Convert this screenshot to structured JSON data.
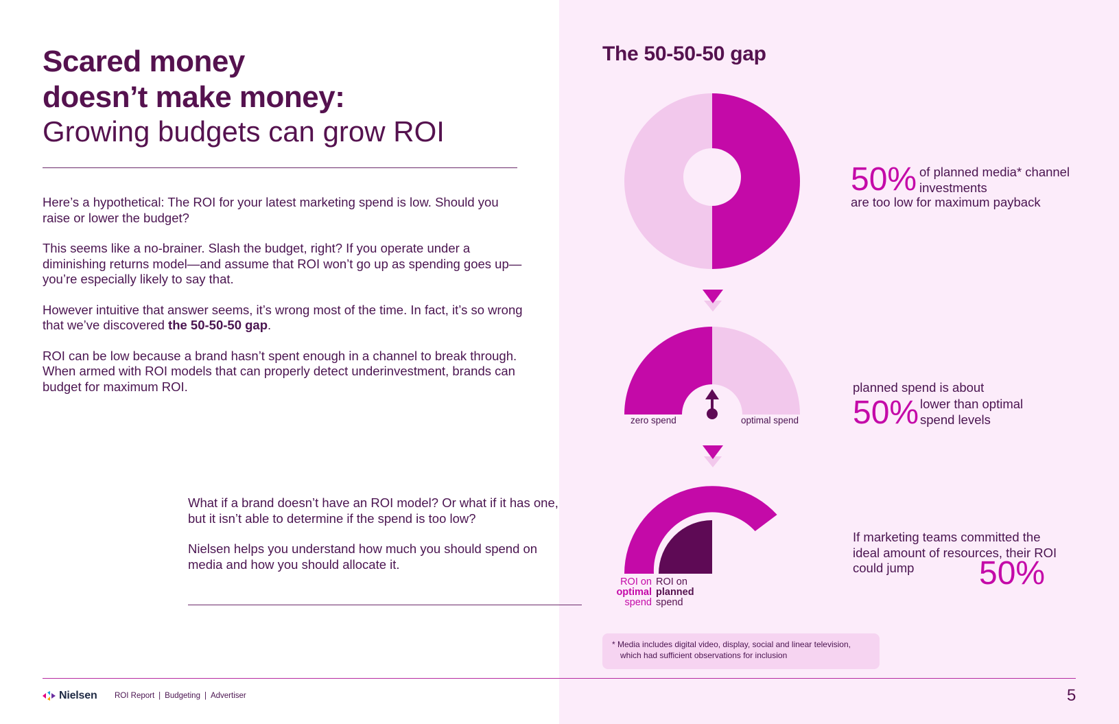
{
  "header": {
    "title_bold_line1": "Scared money",
    "title_bold_line2": "doesn’t make money:",
    "title_light": "Growing budgets can grow ROI"
  },
  "body": {
    "p1": "Here’s a hypothetical: The ROI for your latest marketing spend is low. Should you raise or lower the budget?",
    "p2": "This seems like a no-brainer. Slash the budget, right? If you operate under a diminishing returns model—and assume that ROI won’t go up as spending goes up—you’re especially likely to say that.",
    "p3_before": "However intuitive that answer seems, it’s wrong most of the time. In fact, it’s so wrong that we’ve discovered ",
    "p3_bold": "the 50-50-50 gap",
    "p3_after": ".",
    "p4": "ROI can be low because a brand hasn’t spent enough in a channel to break through. When armed with ROI models that can properly detect underinvestment, brands can budget for maximum ROI."
  },
  "callout": {
    "p1": "What if a brand doesn’t have an ROI model? Or what if it has one, but it isn’t able to determine if the spend is too low?",
    "p2": "Nielsen helps you understand how much you should spend on media and how you should allocate it."
  },
  "infographic": {
    "title": "The 50-50-50 gap",
    "stat1": {
      "value": "50%",
      "text_a": "of planned media* channel investments",
      "text_b": "are too low for maximum payback",
      "fraction": 0.5
    },
    "stat2": {
      "prefix": "planned spend is about",
      "value": "50%",
      "text": "lower than optimal spend levels",
      "fraction": 0.5
    },
    "gauge_labels": {
      "left": "zero spend",
      "right": "optimal spend"
    },
    "stat3": {
      "text": "If marketing teams committed the ideal amount of resources, their ROI could jump",
      "value": "50%"
    },
    "roi_optimal": {
      "line1": "ROI on",
      "line2": "optimal",
      "line3": "spend"
    },
    "roi_planned": {
      "line1": "ROI on",
      "line2": "planned",
      "line3": "spend"
    },
    "footnote_line1": "* Media includes digital video, display, social and linear television,",
    "footnote_line2": "which had sufficient observations for inclusion"
  },
  "colors": {
    "magenta": "#c40aa8",
    "light_pink": "#f2c8ec",
    "dark_plum": "#5e0a55",
    "panel_bg": "#fcecfa"
  },
  "footer": {
    "brand": "Nielsen",
    "crumbs": [
      "ROI Report",
      "Budgeting",
      "Advertiser"
    ],
    "page_number": "5"
  }
}
